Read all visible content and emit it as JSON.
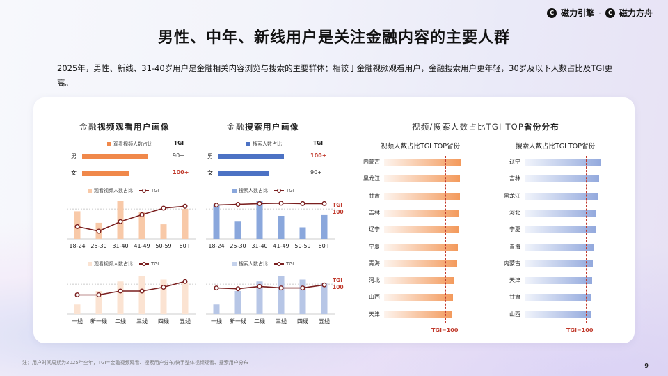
{
  "logos": [
    "磁力引擎",
    "磁力方舟"
  ],
  "logo_sep": "·",
  "title": "男性、中年、新线用户是关注金融内容的主要人群",
  "description": "2025年，男性、新线、31-40岁用户是金融相关内容浏览与搜索的主要群体；相较于金融视频观看用户，金融搜索用户更年轻，30岁及以下人数占比及TGI更高。",
  "video_section": {
    "title_prefix": "金融",
    "title_bold": "视频观看用户画像",
    "gender": {
      "legend": "观看视频人数占比",
      "tgi_header": "TGI",
      "rows": [
        {
          "label": "男",
          "share": 0.72,
          "tgi": "90+",
          "hot": false
        },
        {
          "label": "女",
          "share": 0.52,
          "tgi": "100+",
          "hot": true
        }
      ]
    },
    "age": {
      "legend_bar": "观看视频人数占比",
      "legend_line": "TGI",
      "categories": [
        "18-24",
        "25-30",
        "31-40",
        "41-49",
        "50-59",
        "60+"
      ],
      "bars": [
        0.72,
        0.42,
        1.0,
        0.7,
        0.38,
        0.78
      ],
      "tgi": [
        0.32,
        0.2,
        0.45,
        0.63,
        0.8,
        0.85
      ]
    },
    "city": {
      "legend_bar": "观看视频人数占比",
      "legend_line": "TGI",
      "categories": [
        "一线",
        "新一线",
        "二线",
        "三线",
        "四线",
        "五线"
      ],
      "bars": [
        0.25,
        0.6,
        0.85,
        1.0,
        0.9,
        0.8
      ],
      "tgi": [
        0.5,
        0.5,
        0.6,
        0.6,
        0.7,
        0.85
      ]
    }
  },
  "search_section": {
    "title_prefix": "金融",
    "title_bold": "搜索用户画像",
    "gender": {
      "legend": "搜索人数占比",
      "tgi_header": "TGI",
      "rows": [
        {
          "label": "男",
          "share": 0.72,
          "tgi": "100+",
          "hot": true
        },
        {
          "label": "女",
          "share": 0.55,
          "tgi": "90+",
          "hot": false
        }
      ]
    },
    "age": {
      "legend_bar": "搜索人数占比",
      "legend_line": "TGI",
      "categories": [
        "18-24",
        "25-30",
        "31-40",
        "41-49",
        "50-59",
        "60+"
      ],
      "bars": [
        0.9,
        0.45,
        1.0,
        0.6,
        0.3,
        0.62
      ],
      "tgi": [
        0.88,
        0.9,
        0.92,
        0.93,
        0.92,
        0.92
      ],
      "ref_label": "TGI\n100"
    },
    "city": {
      "legend_bar": "搜索人数占比",
      "legend_line": "TGI",
      "categories": [
        "一线",
        "新一线",
        "二线",
        "三线",
        "四线",
        "五线"
      ],
      "bars": [
        0.25,
        0.6,
        0.85,
        1.0,
        0.9,
        0.8
      ],
      "tgi": [
        0.68,
        0.66,
        0.72,
        0.68,
        0.68,
        0.76
      ],
      "ref_label": "TGI\n100"
    }
  },
  "province_section": {
    "title_prefix": "视频/搜索人数占比TGI TOP",
    "title_bold": "省份分布",
    "video": {
      "subtitle": "视频人数占比TGI TOP省份",
      "provinces": [
        "内蒙古",
        "黑龙江",
        "甘肃",
        "吉林",
        "辽宁",
        "宁夏",
        "青海",
        "河北",
        "山西",
        "天津"
      ],
      "values": [
        1.0,
        0.99,
        0.99,
        0.98,
        0.97,
        0.96,
        0.95,
        0.92,
        0.9,
        0.89
      ],
      "footer": "TGI=100"
    },
    "search": {
      "subtitle": "搜索人数占比TGI TOP省份",
      "provinces": [
        "辽宁",
        "吉林",
        "黑龙江",
        "河北",
        "宁夏",
        "青海",
        "内蒙古",
        "天津",
        "甘肃",
        "山西"
      ],
      "values": [
        1.0,
        0.97,
        0.96,
        0.94,
        0.93,
        0.9,
        0.89,
        0.88,
        0.87,
        0.87
      ],
      "footer": "TGI=100"
    }
  },
  "colors": {
    "orange": "#f0884a",
    "orange_light": "#f8c9a8",
    "blue": "#4c72c4",
    "blue_light": "#b7c6e6",
    "line": "#7a1f1f",
    "red": "#c0392b"
  },
  "footnote": "注：用户时间周期为2025年全年，TGI=金融视频观看、搜索用户分布/快手整体视频观看、搜索用户分布",
  "page_number": "9"
}
